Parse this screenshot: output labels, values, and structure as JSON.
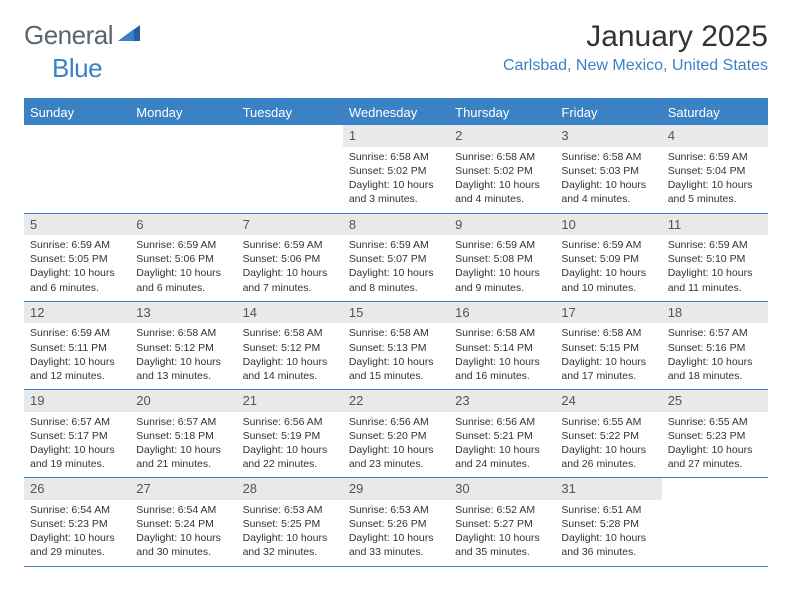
{
  "logo": {
    "general": "General",
    "blue": "Blue"
  },
  "title": "January 2025",
  "location": "Carlsbad, New Mexico, United States",
  "colors": {
    "accent": "#3b82c4",
    "header_text": "#ffffff",
    "daynum_bg": "#e8e9ea",
    "text": "#333333",
    "logo_gray": "#5a6570"
  },
  "weekdays": [
    "Sunday",
    "Monday",
    "Tuesday",
    "Wednesday",
    "Thursday",
    "Friday",
    "Saturday"
  ],
  "weeks": [
    [
      {
        "n": "",
        "lines": []
      },
      {
        "n": "",
        "lines": []
      },
      {
        "n": "",
        "lines": []
      },
      {
        "n": "1",
        "lines": [
          "Sunrise: 6:58 AM",
          "Sunset: 5:02 PM",
          "Daylight: 10 hours and 3 minutes."
        ]
      },
      {
        "n": "2",
        "lines": [
          "Sunrise: 6:58 AM",
          "Sunset: 5:02 PM",
          "Daylight: 10 hours and 4 minutes."
        ]
      },
      {
        "n": "3",
        "lines": [
          "Sunrise: 6:58 AM",
          "Sunset: 5:03 PM",
          "Daylight: 10 hours and 4 minutes."
        ]
      },
      {
        "n": "4",
        "lines": [
          "Sunrise: 6:59 AM",
          "Sunset: 5:04 PM",
          "Daylight: 10 hours and 5 minutes."
        ]
      }
    ],
    [
      {
        "n": "5",
        "lines": [
          "Sunrise: 6:59 AM",
          "Sunset: 5:05 PM",
          "Daylight: 10 hours and 6 minutes."
        ]
      },
      {
        "n": "6",
        "lines": [
          "Sunrise: 6:59 AM",
          "Sunset: 5:06 PM",
          "Daylight: 10 hours and 6 minutes."
        ]
      },
      {
        "n": "7",
        "lines": [
          "Sunrise: 6:59 AM",
          "Sunset: 5:06 PM",
          "Daylight: 10 hours and 7 minutes."
        ]
      },
      {
        "n": "8",
        "lines": [
          "Sunrise: 6:59 AM",
          "Sunset: 5:07 PM",
          "Daylight: 10 hours and 8 minutes."
        ]
      },
      {
        "n": "9",
        "lines": [
          "Sunrise: 6:59 AM",
          "Sunset: 5:08 PM",
          "Daylight: 10 hours and 9 minutes."
        ]
      },
      {
        "n": "10",
        "lines": [
          "Sunrise: 6:59 AM",
          "Sunset: 5:09 PM",
          "Daylight: 10 hours and 10 minutes."
        ]
      },
      {
        "n": "11",
        "lines": [
          "Sunrise: 6:59 AM",
          "Sunset: 5:10 PM",
          "Daylight: 10 hours and 11 minutes."
        ]
      }
    ],
    [
      {
        "n": "12",
        "lines": [
          "Sunrise: 6:59 AM",
          "Sunset: 5:11 PM",
          "Daylight: 10 hours and 12 minutes."
        ]
      },
      {
        "n": "13",
        "lines": [
          "Sunrise: 6:58 AM",
          "Sunset: 5:12 PM",
          "Daylight: 10 hours and 13 minutes."
        ]
      },
      {
        "n": "14",
        "lines": [
          "Sunrise: 6:58 AM",
          "Sunset: 5:12 PM",
          "Daylight: 10 hours and 14 minutes."
        ]
      },
      {
        "n": "15",
        "lines": [
          "Sunrise: 6:58 AM",
          "Sunset: 5:13 PM",
          "Daylight: 10 hours and 15 minutes."
        ]
      },
      {
        "n": "16",
        "lines": [
          "Sunrise: 6:58 AM",
          "Sunset: 5:14 PM",
          "Daylight: 10 hours and 16 minutes."
        ]
      },
      {
        "n": "17",
        "lines": [
          "Sunrise: 6:58 AM",
          "Sunset: 5:15 PM",
          "Daylight: 10 hours and 17 minutes."
        ]
      },
      {
        "n": "18",
        "lines": [
          "Sunrise: 6:57 AM",
          "Sunset: 5:16 PM",
          "Daylight: 10 hours and 18 minutes."
        ]
      }
    ],
    [
      {
        "n": "19",
        "lines": [
          "Sunrise: 6:57 AM",
          "Sunset: 5:17 PM",
          "Daylight: 10 hours and 19 minutes."
        ]
      },
      {
        "n": "20",
        "lines": [
          "Sunrise: 6:57 AM",
          "Sunset: 5:18 PM",
          "Daylight: 10 hours and 21 minutes."
        ]
      },
      {
        "n": "21",
        "lines": [
          "Sunrise: 6:56 AM",
          "Sunset: 5:19 PM",
          "Daylight: 10 hours and 22 minutes."
        ]
      },
      {
        "n": "22",
        "lines": [
          "Sunrise: 6:56 AM",
          "Sunset: 5:20 PM",
          "Daylight: 10 hours and 23 minutes."
        ]
      },
      {
        "n": "23",
        "lines": [
          "Sunrise: 6:56 AM",
          "Sunset: 5:21 PM",
          "Daylight: 10 hours and 24 minutes."
        ]
      },
      {
        "n": "24",
        "lines": [
          "Sunrise: 6:55 AM",
          "Sunset: 5:22 PM",
          "Daylight: 10 hours and 26 minutes."
        ]
      },
      {
        "n": "25",
        "lines": [
          "Sunrise: 6:55 AM",
          "Sunset: 5:23 PM",
          "Daylight: 10 hours and 27 minutes."
        ]
      }
    ],
    [
      {
        "n": "26",
        "lines": [
          "Sunrise: 6:54 AM",
          "Sunset: 5:23 PM",
          "Daylight: 10 hours and 29 minutes."
        ]
      },
      {
        "n": "27",
        "lines": [
          "Sunrise: 6:54 AM",
          "Sunset: 5:24 PM",
          "Daylight: 10 hours and 30 minutes."
        ]
      },
      {
        "n": "28",
        "lines": [
          "Sunrise: 6:53 AM",
          "Sunset: 5:25 PM",
          "Daylight: 10 hours and 32 minutes."
        ]
      },
      {
        "n": "29",
        "lines": [
          "Sunrise: 6:53 AM",
          "Sunset: 5:26 PM",
          "Daylight: 10 hours and 33 minutes."
        ]
      },
      {
        "n": "30",
        "lines": [
          "Sunrise: 6:52 AM",
          "Sunset: 5:27 PM",
          "Daylight: 10 hours and 35 minutes."
        ]
      },
      {
        "n": "31",
        "lines": [
          "Sunrise: 6:51 AM",
          "Sunset: 5:28 PM",
          "Daylight: 10 hours and 36 minutes."
        ]
      },
      {
        "n": "",
        "lines": []
      }
    ]
  ]
}
